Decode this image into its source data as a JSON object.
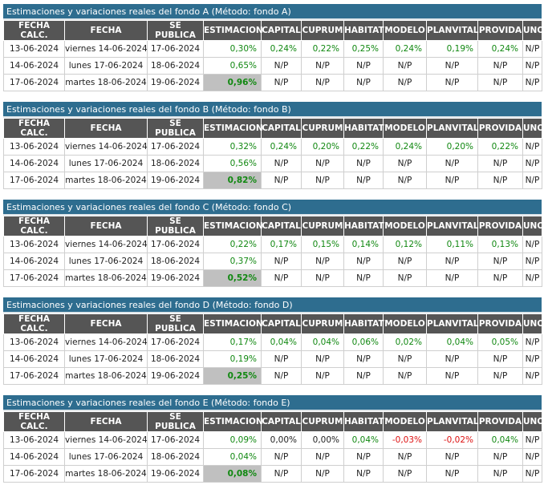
{
  "columns": [
    "FECHA CALC.",
    "FECHA",
    "SE PUBLICA",
    "ESTIMACION",
    "CAPITAL",
    "CUPRUM",
    "HABITAT",
    "MODELO",
    "PLANVITAL",
    "PROVIDA",
    "UNO"
  ],
  "colors": {
    "header_bar": "#2e6d8f",
    "column_header": "#555555",
    "positive": "#118811",
    "negative": "#dd1111",
    "highlight": "#c0c0c0"
  },
  "blocks": [
    {
      "title": "Estimaciones y variaciones reales del fondo A (Método: fondo A)",
      "rows": [
        [
          "13-06-2024",
          "viernes 14-06-2024",
          "17-06-2024",
          "0,30%",
          "0,24%",
          "0,22%",
          "0,25%",
          "0,24%",
          "0,19%",
          "0,24%",
          "N/P"
        ],
        [
          "14-06-2024",
          "lunes 17-06-2024",
          "18-06-2024",
          "0,65%",
          "N/P",
          "N/P",
          "N/P",
          "N/P",
          "N/P",
          "N/P",
          "N/P"
        ],
        [
          "17-06-2024",
          "martes 18-06-2024",
          "19-06-2024",
          "0,96%",
          "N/P",
          "N/P",
          "N/P",
          "N/P",
          "N/P",
          "N/P",
          "N/P"
        ]
      ]
    },
    {
      "title": "Estimaciones y variaciones reales del fondo B (Método: fondo B)",
      "rows": [
        [
          "13-06-2024",
          "viernes 14-06-2024",
          "17-06-2024",
          "0,32%",
          "0,24%",
          "0,20%",
          "0,22%",
          "0,24%",
          "0,20%",
          "0,22%",
          "N/P"
        ],
        [
          "14-06-2024",
          "lunes 17-06-2024",
          "18-06-2024",
          "0,56%",
          "N/P",
          "N/P",
          "N/P",
          "N/P",
          "N/P",
          "N/P",
          "N/P"
        ],
        [
          "17-06-2024",
          "martes 18-06-2024",
          "19-06-2024",
          "0,82%",
          "N/P",
          "N/P",
          "N/P",
          "N/P",
          "N/P",
          "N/P",
          "N/P"
        ]
      ]
    },
    {
      "title": "Estimaciones y variaciones reales del fondo C (Método: fondo C)",
      "rows": [
        [
          "13-06-2024",
          "viernes 14-06-2024",
          "17-06-2024",
          "0,22%",
          "0,17%",
          "0,15%",
          "0,14%",
          "0,12%",
          "0,11%",
          "0,13%",
          "N/P"
        ],
        [
          "14-06-2024",
          "lunes 17-06-2024",
          "18-06-2024",
          "0,37%",
          "N/P",
          "N/P",
          "N/P",
          "N/P",
          "N/P",
          "N/P",
          "N/P"
        ],
        [
          "17-06-2024",
          "martes 18-06-2024",
          "19-06-2024",
          "0,52%",
          "N/P",
          "N/P",
          "N/P",
          "N/P",
          "N/P",
          "N/P",
          "N/P"
        ]
      ]
    },
    {
      "title": "Estimaciones y variaciones reales del fondo D (Método: fondo D)",
      "rows": [
        [
          "13-06-2024",
          "viernes 14-06-2024",
          "17-06-2024",
          "0,17%",
          "0,04%",
          "0,04%",
          "0,06%",
          "0,02%",
          "0,04%",
          "0,05%",
          "N/P"
        ],
        [
          "14-06-2024",
          "lunes 17-06-2024",
          "18-06-2024",
          "0,19%",
          "N/P",
          "N/P",
          "N/P",
          "N/P",
          "N/P",
          "N/P",
          "N/P"
        ],
        [
          "17-06-2024",
          "martes 18-06-2024",
          "19-06-2024",
          "0,25%",
          "N/P",
          "N/P",
          "N/P",
          "N/P",
          "N/P",
          "N/P",
          "N/P"
        ]
      ]
    },
    {
      "title": "Estimaciones y variaciones reales del fondo E (Método: fondo E)",
      "rows": [
        [
          "13-06-2024",
          "viernes 14-06-2024",
          "17-06-2024",
          "0,09%",
          "0,00%",
          "0,00%",
          "0,04%",
          "-0,03%",
          "-0,02%",
          "0,04%",
          "N/P"
        ],
        [
          "14-06-2024",
          "lunes 17-06-2024",
          "18-06-2024",
          "0,04%",
          "N/P",
          "N/P",
          "N/P",
          "N/P",
          "N/P",
          "N/P",
          "N/P"
        ],
        [
          "17-06-2024",
          "martes 18-06-2024",
          "19-06-2024",
          "0,08%",
          "N/P",
          "N/P",
          "N/P",
          "N/P",
          "N/P",
          "N/P",
          "N/P"
        ]
      ]
    }
  ]
}
